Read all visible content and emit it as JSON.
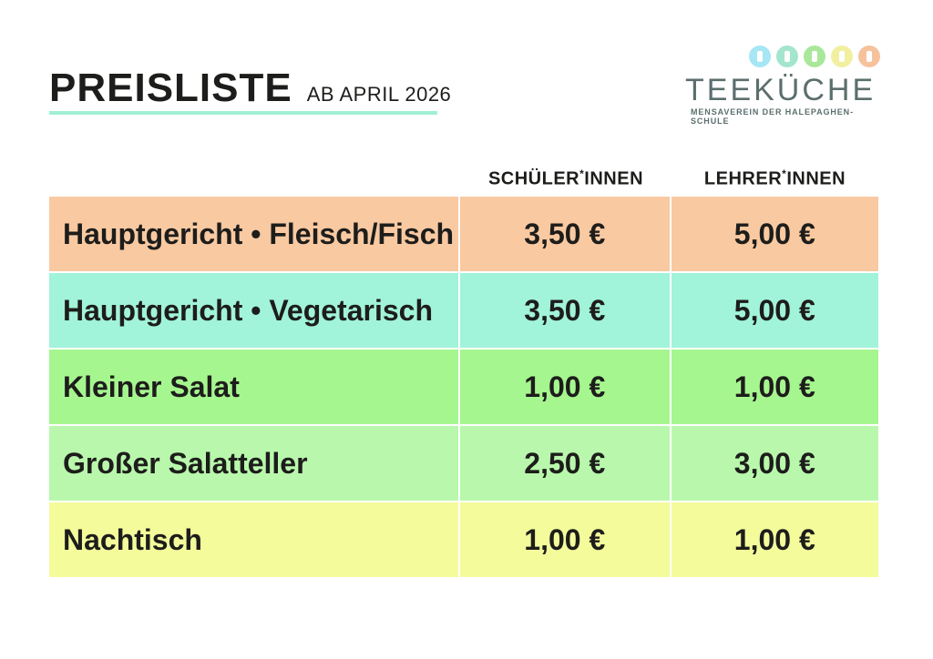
{
  "header": {
    "title": "PREISLISTE",
    "subtitle": "AB APRIL 2026"
  },
  "logo": {
    "name": "TEEKÜCHE",
    "tagline": "MENSAVEREIN DER HALEPAGHEN-SCHULE",
    "icon_colors": [
      "#a6e6f5",
      "#a4e5cd",
      "#a9e89a",
      "#f1f0a0",
      "#f6c29c"
    ],
    "icons": [
      "cup-icon",
      "fork-icon",
      "plate-icon",
      "spoon-icon",
      "ladle-icon"
    ]
  },
  "columns": {
    "students_main": "SCHÜLER",
    "students_star": "*",
    "students_suffix": "INNEN",
    "teachers_main": "LEHRER",
    "teachers_star": "*",
    "teachers_suffix": "INNEN"
  },
  "rows": [
    {
      "name": "Hauptgericht • Fleisch/Fisch",
      "students": "3,50 €",
      "teachers": "5,00 €",
      "color": "#f9c9a1"
    },
    {
      "name": "Hauptgericht • Vegetarisch",
      "students": "3,50 €",
      "teachers": "5,00 €",
      "color": "#a1f3d9"
    },
    {
      "name": "Kleiner Salat",
      "students": "1,00 €",
      "teachers": "1,00 €",
      "color": "#a6f68f"
    },
    {
      "name": "Großer Salatteller",
      "students": "2,50 €",
      "teachers": "3,00 €",
      "color": "#b9f8ac"
    },
    {
      "name": "Nachtisch",
      "students": "1,00 €",
      "teachers": "1,00 €",
      "color": "#f4fb9b"
    }
  ]
}
